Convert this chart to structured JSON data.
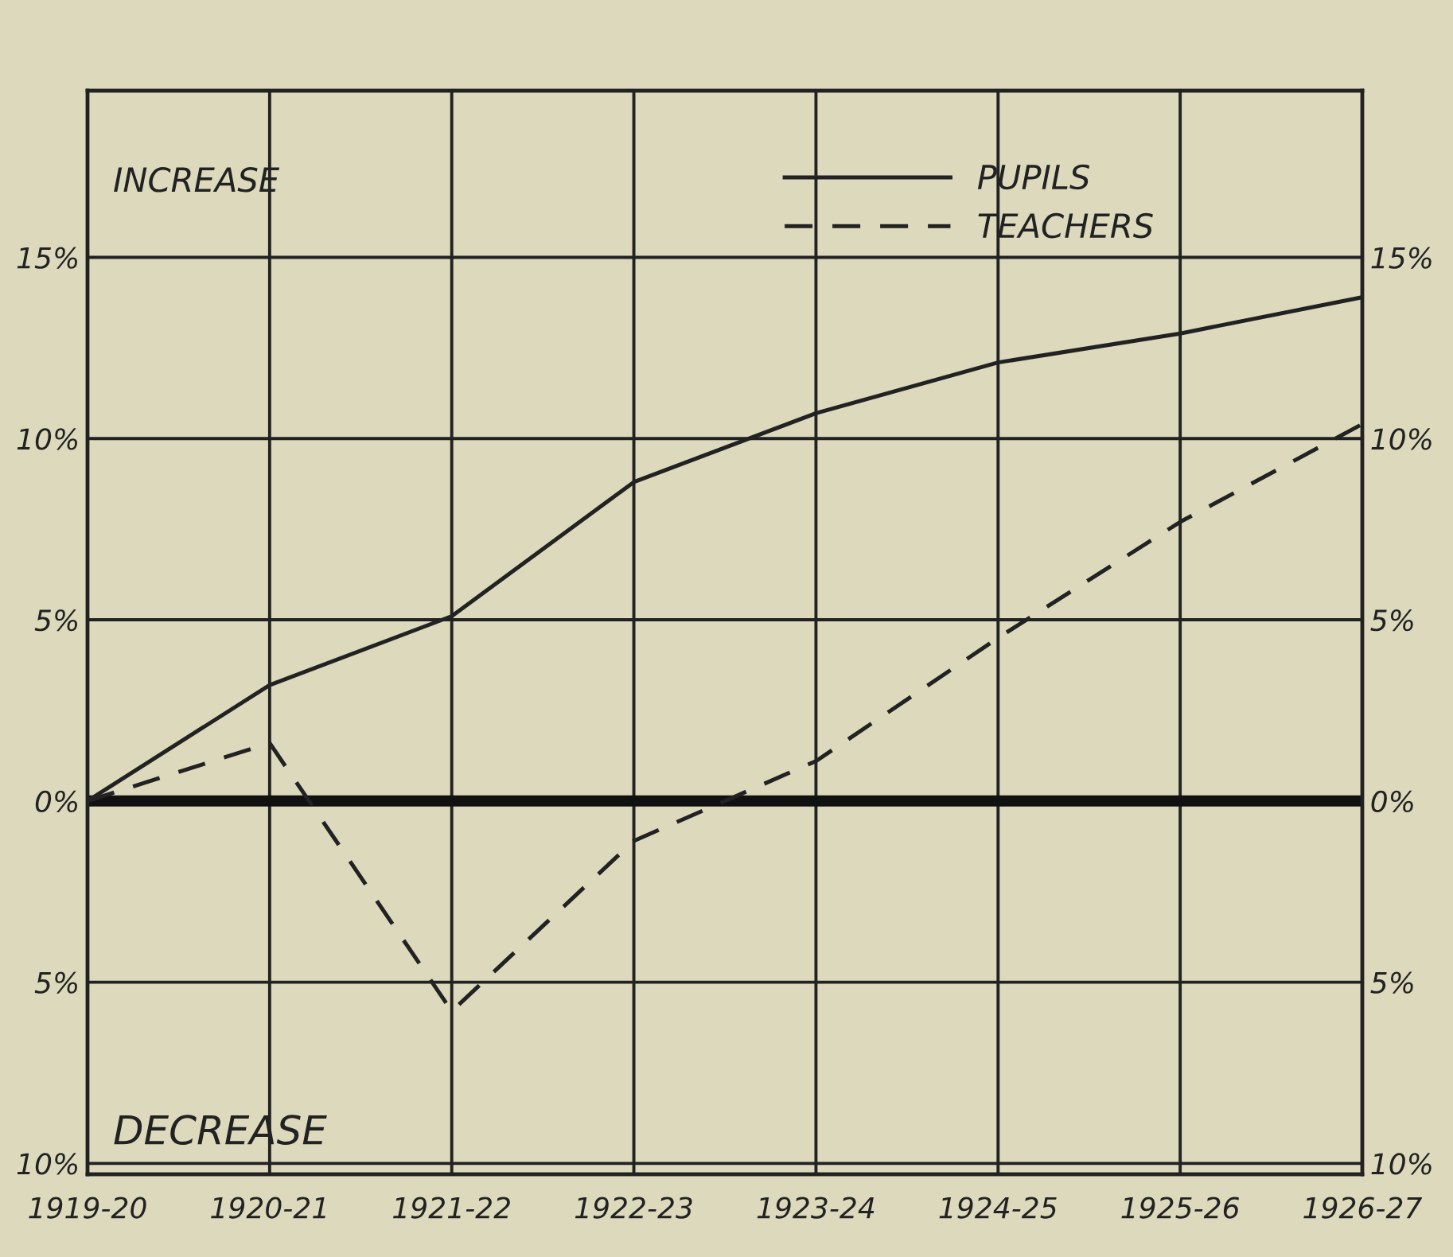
{
  "chart_data": {
    "type": "line",
    "categories": [
      "1919-20",
      "1920-21",
      "1921-22",
      "1922-23",
      "1923-24",
      "1924-25",
      "1925-26",
      "1926-27"
    ],
    "series": [
      {
        "name": "PUPILS",
        "color": "#222222",
        "line_style": "solid",
        "values": [
          0,
          3.2,
          5.1,
          8.8,
          10.7,
          12.1,
          12.9,
          13.9
        ]
      },
      {
        "name": "TEACHERS",
        "color": "#222222",
        "line_style": "dashed",
        "values": [
          0,
          1.6,
          -5.8,
          -1.1,
          1.1,
          4.5,
          7.7,
          10.4
        ]
      }
    ],
    "ylim": [
      -10.3,
      19.6
    ],
    "yticks": [
      {
        "value": -10,
        "label": "10%"
      },
      {
        "value": -5,
        "label": "5%"
      },
      {
        "value": 0,
        "label": "0%"
      },
      {
        "value": 5,
        "label": "5%"
      },
      {
        "value": 10,
        "label": "10%"
      },
      {
        "value": 15,
        "label": "15%"
      }
    ],
    "y2lim": [
      -10.3,
      19.6
    ],
    "y2ticks": [
      {
        "value": -10,
        "label": "10%"
      },
      {
        "value": -5,
        "label": "5%"
      },
      {
        "value": 0,
        "label": "0%"
      },
      {
        "value": 5,
        "label": "5%"
      },
      {
        "value": 10,
        "label": "10%"
      },
      {
        "value": 15,
        "label": "15%"
      }
    ],
    "ref_lines": [
      {
        "axis": "y",
        "value": 0,
        "color": "#111111"
      }
    ],
    "annotations": [
      "INCREASE",
      "DECREASE"
    ],
    "grid": true,
    "legend": "top right",
    "marker": "none"
  }
}
